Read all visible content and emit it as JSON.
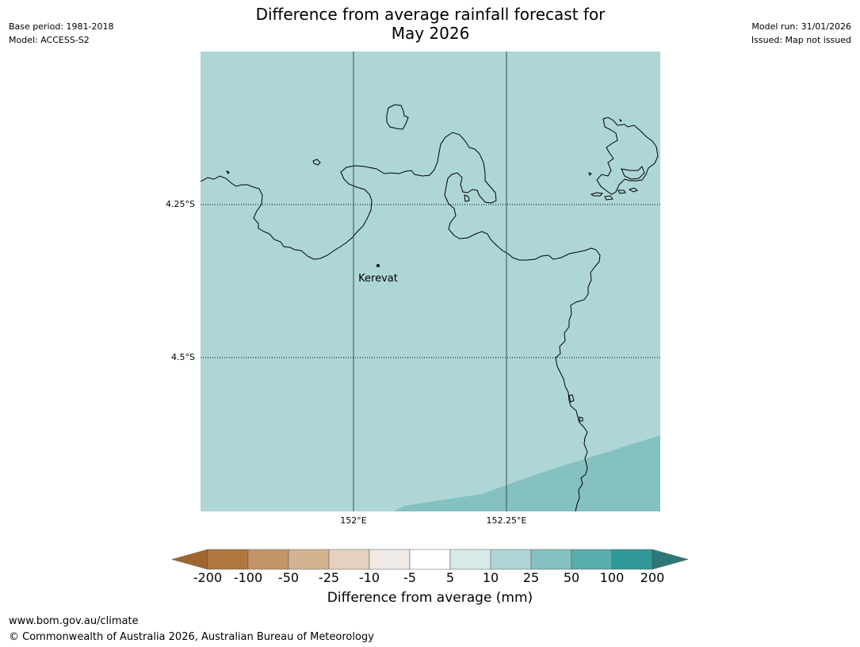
{
  "meta_left": {
    "base_period": "Base period: 1981-2018",
    "model": "Model: ACCESS-S2"
  },
  "meta_right": {
    "model_run": "Model run: 31/01/2026",
    "issued": "Issued: Map not issued"
  },
  "title": {
    "line1": "Difference from average rainfall forecast for",
    "line2": "May 2026"
  },
  "map": {
    "background_color": "#aed6d6",
    "band_color": "#84c1c0",
    "lat_labels": [
      "4.25°S",
      "4.5°S"
    ],
    "lon_labels": [
      "152°E",
      "152.25°E"
    ],
    "place": {
      "name": "Kerevat"
    }
  },
  "colorbar": {
    "labels": [
      "-200",
      "-100",
      "-50",
      "-25",
      "-10",
      "-5",
      "5",
      "10",
      "25",
      "50",
      "100",
      "200"
    ],
    "colors": [
      "#a0662e",
      "#b1773d",
      "#c49469",
      "#d4b390",
      "#e5d1be",
      "#f0ebe6",
      "#ffffff",
      "#d7eae9",
      "#aed6d6",
      "#84c1c0",
      "#5aadad",
      "#309a98",
      "#2a7978"
    ],
    "title": "Difference from average (mm)"
  },
  "footer": {
    "url": "www.bom.gov.au/climate",
    "copyright": "© Commonwealth of Australia 2026, Australian Bureau of Meteorology"
  }
}
